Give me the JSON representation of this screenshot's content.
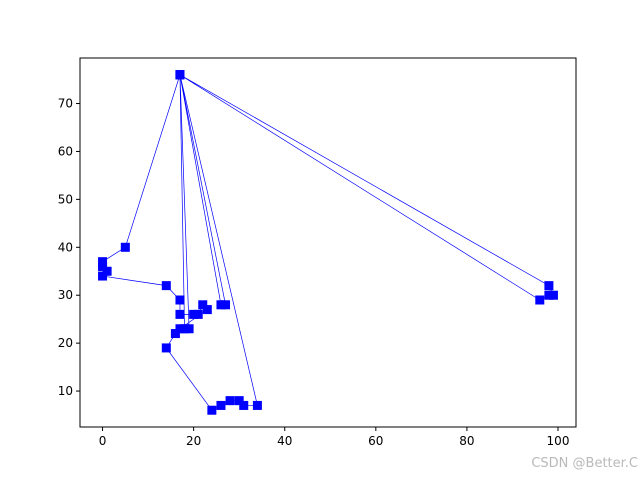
{
  "chart_data": {
    "type": "line",
    "marker": "square",
    "series_color": "#0000ff",
    "xlim": [
      -4.95,
      103.95
    ],
    "ylim": [
      2.5,
      79.5
    ],
    "xticks": [
      0,
      20,
      40,
      60,
      80,
      100
    ],
    "yticks": [
      10,
      20,
      30,
      40,
      50,
      60,
      70
    ],
    "grid": false,
    "legend": "none",
    "series": [
      {
        "x": [
          17,
          5,
          0,
          0,
          1,
          0,
          14,
          17,
          17,
          20,
          21,
          22,
          23,
          17,
          16,
          14,
          24,
          26,
          28,
          30,
          31,
          34,
          17,
          18,
          19,
          17,
          27,
          26,
          17,
          98,
          99,
          98,
          96,
          17
        ],
        "y": [
          76,
          40,
          37,
          36,
          35,
          34,
          32,
          29,
          26,
          26,
          26,
          28,
          27,
          23,
          22,
          19,
          6,
          7,
          8,
          8,
          7,
          7,
          76,
          23,
          23,
          76,
          28,
          28,
          76,
          32,
          30,
          30,
          29,
          76
        ]
      }
    ]
  },
  "watermark": "CSDN @Better.C"
}
